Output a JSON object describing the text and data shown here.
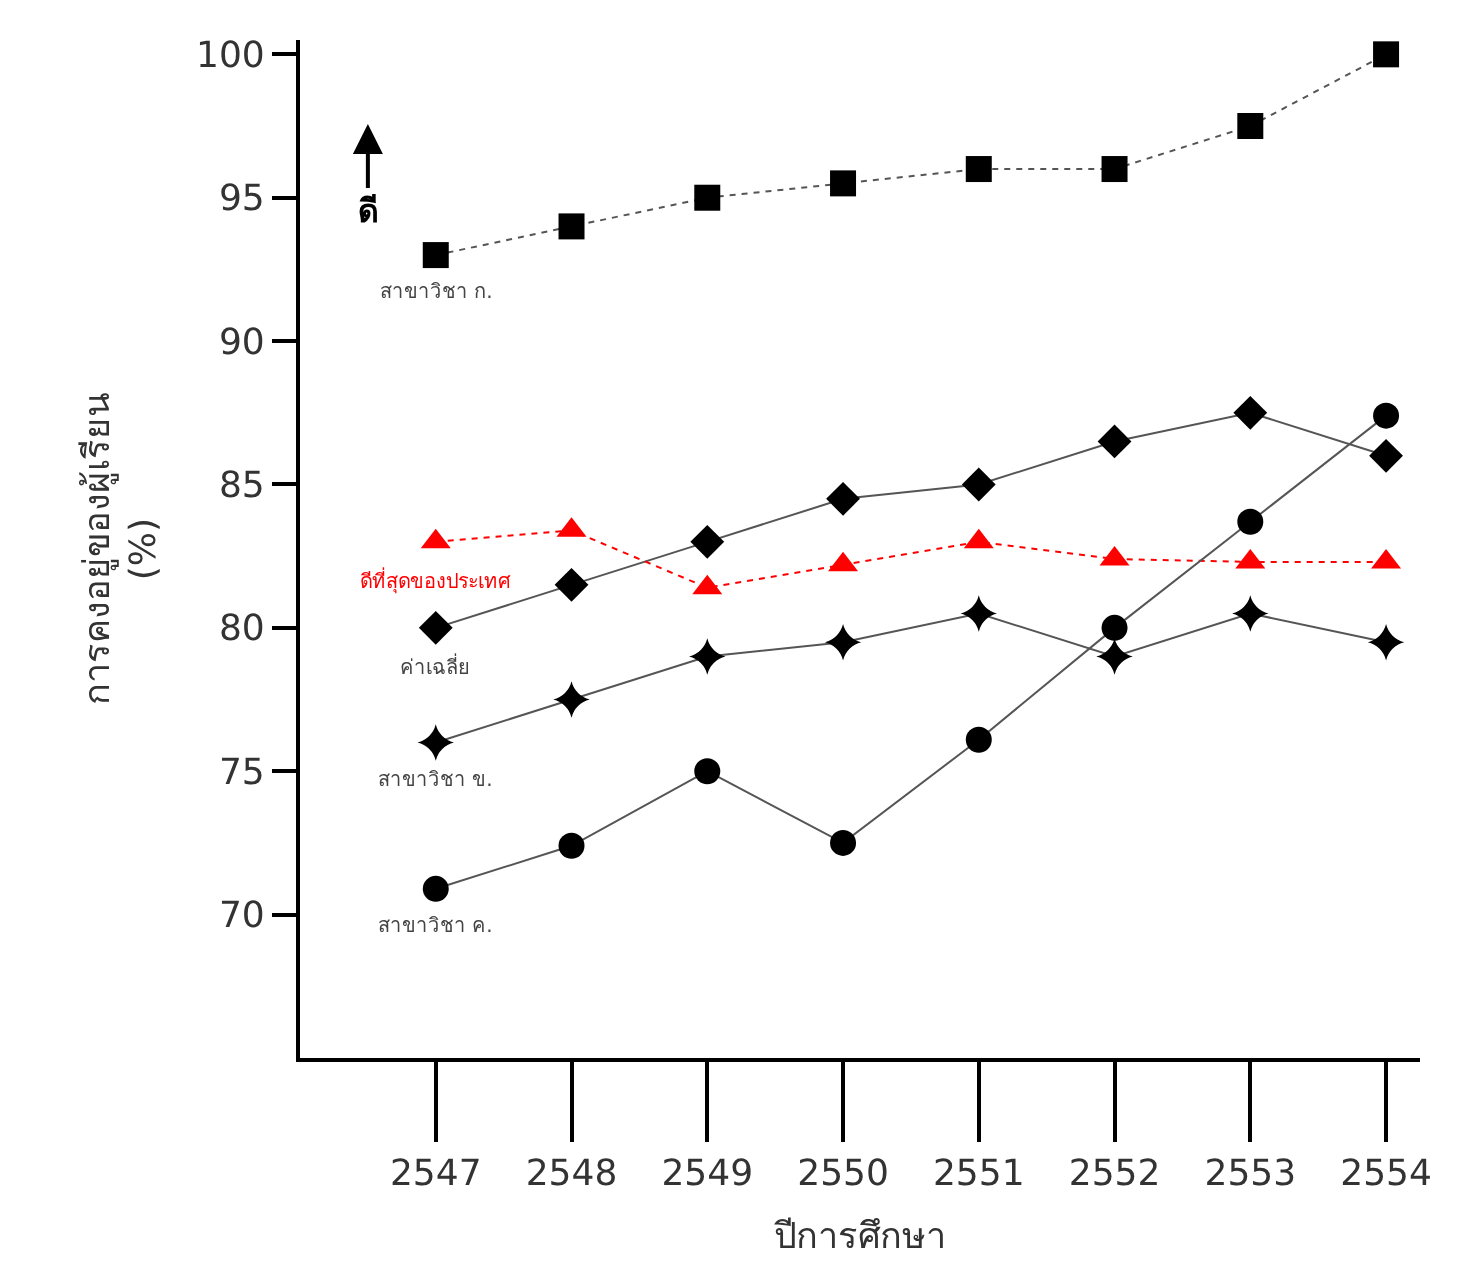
{
  "chart_data": {
    "type": "line",
    "xlabel": "ปีการศึกษา",
    "ylabel": "การคงอยู่ของผู้เรียน\n(%)",
    "categories": [
      "2547",
      "2548",
      "2549",
      "2550",
      "2551",
      "2552",
      "2553",
      "2554"
    ],
    "series": [
      {
        "name": "สาขาวิชา ก.",
        "color": "#000000",
        "marker": "square",
        "line_style": "dotted",
        "values": [
          93,
          94,
          95,
          95.5,
          96,
          96,
          97.5,
          100
        ]
      },
      {
        "name": "ค่าเฉลี่ย",
        "color": "#000000",
        "marker": "diamond",
        "line_style": "solid",
        "values": [
          80,
          81.5,
          83,
          84.5,
          85,
          86.5,
          87.5,
          86
        ]
      },
      {
        "name": "ดีที่สุดของประเทศ",
        "color": "#ff0000",
        "marker": "triangle",
        "line_style": "dotted",
        "values": [
          83,
          83.4,
          81.4,
          82.2,
          83,
          82.4,
          82.3,
          82.3
        ]
      },
      {
        "name": "สาขาวิชา ข.",
        "color": "#000000",
        "marker": "star",
        "line_style": "solid",
        "values": [
          76,
          77.5,
          79,
          79.5,
          80.5,
          79,
          80.5,
          79.5
        ]
      },
      {
        "name": "สาขาวิชา ค.",
        "color": "#000000",
        "marker": "circle",
        "line_style": "solid",
        "values": [
          70.9,
          72.4,
          75,
          72.5,
          76.1,
          80,
          83.7,
          87.4
        ]
      }
    ],
    "ylim": [
      65,
      100.5
    ],
    "yticks": [
      70,
      75,
      80,
      85,
      90,
      95,
      100
    ],
    "annotations": [
      "ดี"
    ],
    "legend": false
  }
}
